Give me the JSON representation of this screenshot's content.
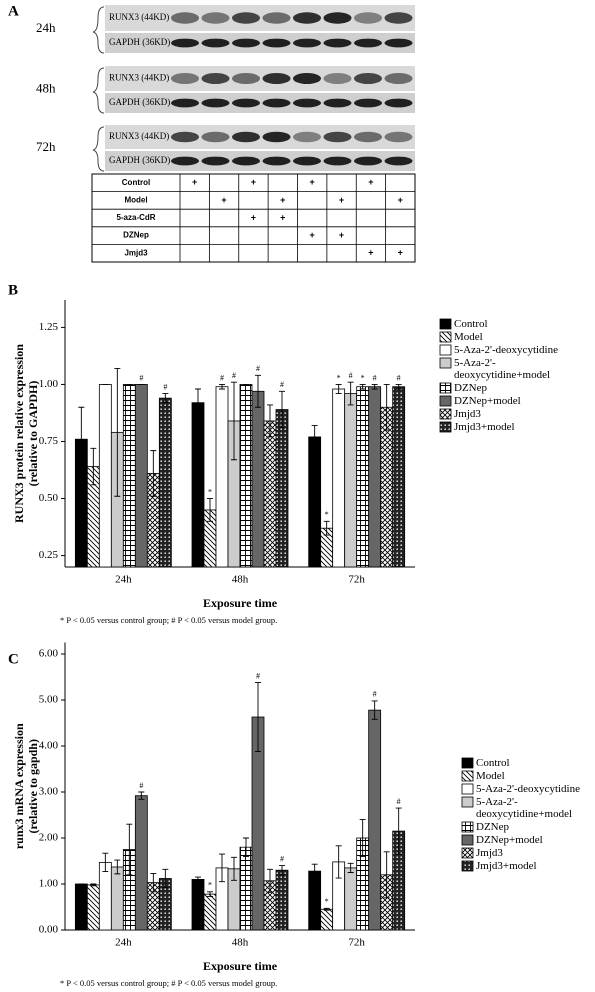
{
  "panel_a": {
    "letter": "A",
    "blots": [
      {
        "time": "24h",
        "labels": [
          "RUNX3 (44KD)",
          "GAPDH (36KD)"
        ]
      },
      {
        "time": "48h",
        "labels": [
          "RUNX3 (44KD)",
          "GAPDH (36KD)"
        ]
      },
      {
        "time": "72h",
        "labels": [
          "RUNX3 (44KD)",
          "GAPDH (36KD)"
        ]
      }
    ],
    "table": {
      "rows": [
        {
          "label": "Control",
          "cells": [
            "+",
            null,
            "+",
            null,
            "+",
            null,
            "+",
            null
          ]
        },
        {
          "label": "Model",
          "cells": [
            null,
            "+",
            null,
            "+",
            null,
            "+",
            null,
            "+"
          ]
        },
        {
          "label": "5-aza-CdR",
          "cells": [
            null,
            null,
            "+",
            "+",
            null,
            null,
            null,
            null
          ]
        },
        {
          "label": "DZNep",
          "cells": [
            null,
            null,
            null,
            null,
            "+",
            "+",
            null,
            null
          ]
        },
        {
          "label": "Jmjd3",
          "cells": [
            null,
            null,
            null,
            null,
            null,
            null,
            "+",
            "+"
          ]
        }
      ]
    }
  },
  "chart_data": [
    {
      "type": "bar",
      "panel": "B",
      "ylabel": [
        "RUNX3 protein relative expression",
        "(relative to GAPDH)"
      ],
      "xlabel": "Exposure time",
      "footnote": "* P < 0.05  versus control group; # P < 0.05  versus model group.",
      "categories": [
        "24h",
        "48h",
        "72h"
      ],
      "ylim": [
        0.2,
        1.37
      ],
      "yticks": [
        0.25,
        0.5,
        0.75,
        1.0,
        1.25
      ],
      "ytick_labels": [
        "0.25",
        "0.50",
        "0.75",
        "1.00",
        "1.25"
      ],
      "series": [
        {
          "name": "Control",
          "color": "#000000",
          "values": [
            0.76,
            0.92,
            0.77
          ],
          "errors": [
            0.14,
            0.06,
            0.05
          ]
        },
        {
          "name": "Model",
          "color": "#ffffff",
          "pattern": "hatch",
          "values": [
            0.64,
            0.45,
            0.37
          ],
          "errors": [
            0.08,
            0.05,
            0.03
          ],
          "markers": [
            null,
            "*",
            "*"
          ]
        },
        {
          "name": "5-Aza-2'-deoxycytidine",
          "color": "#ffffff",
          "values": [
            1.0,
            0.99,
            0.98
          ],
          "errors": [
            0.0,
            0.01,
            0.02
          ],
          "markers": [
            null,
            "#",
            "*"
          ]
        },
        {
          "name": "5-Aza-2'-deoxycytidine+model",
          "color": "#cccccc",
          "values": [
            0.79,
            0.84,
            0.96
          ],
          "errors": [
            0.28,
            0.17,
            0.05
          ],
          "markers": [
            null,
            "#",
            "#"
          ]
        },
        {
          "name": "DZNep",
          "color": "#ffffff",
          "pattern": "grid",
          "values": [
            1.0,
            1.0,
            0.99
          ],
          "errors": [
            0.0,
            0.0,
            0.01
          ],
          "markers": [
            null,
            null,
            "*"
          ]
        },
        {
          "name": "DZNep+model",
          "color": "#666666",
          "values": [
            1.0,
            0.97,
            0.99
          ],
          "errors": [
            0.0,
            0.07,
            0.01
          ],
          "markers": [
            "#",
            "#",
            "#"
          ]
        },
        {
          "name": "Jmjd3",
          "color": "#ffffff",
          "pattern": "cross",
          "values": [
            0.61,
            0.84,
            0.9
          ],
          "errors": [
            0.1,
            0.07,
            0.1
          ]
        },
        {
          "name": "Jmjd3+model",
          "color": "#222222",
          "pattern": "dots",
          "values": [
            0.94,
            0.89,
            0.99
          ],
          "errors": [
            0.02,
            0.08,
            0.01
          ],
          "markers": [
            "#",
            "#",
            "#"
          ]
        }
      ]
    },
    {
      "type": "bar",
      "panel": "C",
      "ylabel": [
        "runx3 mRNA expression",
        "(relative to gapdh)"
      ],
      "xlabel": "Exposure time",
      "footnote": "* P < 0.05  versus control group; # P < 0.05  versus model group.",
      "categories": [
        "24h",
        "48h",
        "72h"
      ],
      "ylim": [
        0,
        6.25
      ],
      "yticks": [
        {
          "value": 0,
          "label": "0.00"
        },
        {
          "value": 1,
          "label": "1.00"
        },
        {
          "value": 2,
          "label": "2.00"
        },
        {
          "value": 3,
          "label": "3.00"
        },
        {
          "value": 4,
          "label": "4.00"
        },
        {
          "value": 5,
          "label": "5.00"
        },
        {
          "value": 6,
          "label": "6.00"
        }
      ],
      "series": [
        {
          "name": "Control",
          "color": "#000000",
          "values": [
            1.0,
            1.1,
            1.28
          ],
          "errors": [
            0.0,
            0.05,
            0.15
          ]
        },
        {
          "name": "Model",
          "color": "#ffffff",
          "pattern": "hatch",
          "values": [
            0.98,
            0.78,
            0.45
          ],
          "errors": [
            0.02,
            0.05,
            0.02
          ],
          "markers": [
            null,
            "*",
            "*"
          ]
        },
        {
          "name": "5-Aza-2'-deoxycytidine",
          "color": "#ffffff",
          "values": [
            1.47,
            1.35,
            1.48
          ],
          "errors": [
            0.2,
            0.3,
            0.35
          ]
        },
        {
          "name": "5-Aza-2'-deoxycytidine+model",
          "color": "#cccccc",
          "values": [
            1.37,
            1.33,
            1.35
          ],
          "errors": [
            0.15,
            0.25,
            0.1
          ]
        },
        {
          "name": "DZNep",
          "color": "#ffffff",
          "pattern": "grid",
          "values": [
            1.75,
            1.8,
            2.0
          ],
          "errors": [
            0.55,
            0.2,
            0.4
          ]
        },
        {
          "name": "DZNep+model",
          "color": "#666666",
          "values": [
            2.92,
            4.63,
            4.78
          ],
          "errors": [
            0.08,
            0.75,
            0.2
          ],
          "markers": [
            "#",
            "#",
            "#"
          ]
        },
        {
          "name": "Jmjd3",
          "color": "#ffffff",
          "pattern": "cross",
          "values": [
            1.03,
            1.07,
            1.2
          ],
          "errors": [
            0.2,
            0.25,
            0.5
          ]
        },
        {
          "name": "Jmjd3+model",
          "color": "#222222",
          "pattern": "dots",
          "values": [
            1.12,
            1.3,
            2.15
          ],
          "errors": [
            0.2,
            0.1,
            0.5
          ],
          "markers": [
            null,
            "#",
            "#"
          ]
        }
      ]
    }
  ]
}
